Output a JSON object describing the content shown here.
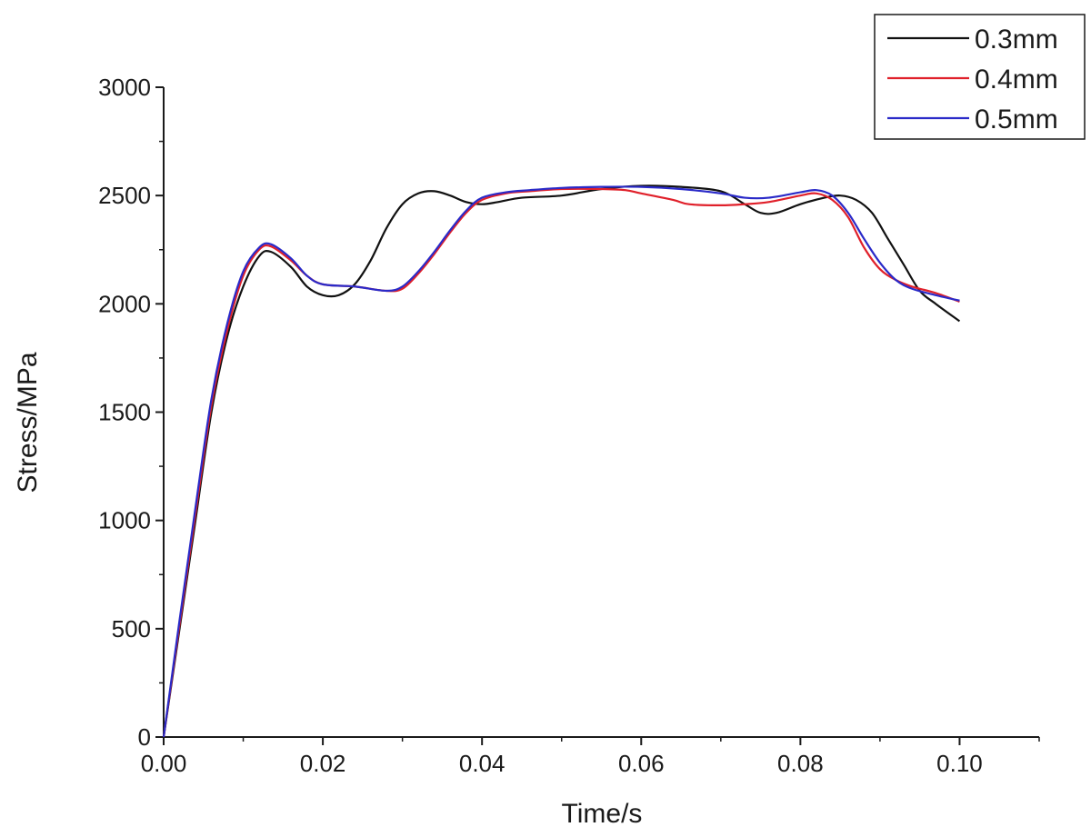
{
  "chart_data": {
    "type": "line",
    "title": "",
    "xlabel": "Time/s",
    "ylabel": "Stress/MPa",
    "xlim": [
      0,
      0.11
    ],
    "ylim": [
      0,
      3000
    ],
    "x_ticks": [
      "0.00",
      "0.02",
      "0.04",
      "0.06",
      "0.08",
      "0.10"
    ],
    "y_ticks": [
      "0",
      "500",
      "1000",
      "1500",
      "2000",
      "2500",
      "3000"
    ],
    "grid": false,
    "legend_position": "top-right",
    "series": [
      {
        "name": "0.3mm",
        "color": "#111111",
        "points": [
          [
            0,
            0
          ],
          [
            0.002,
            500
          ],
          [
            0.004,
            1000
          ],
          [
            0.006,
            1500
          ],
          [
            0.008,
            1850
          ],
          [
            0.01,
            2080
          ],
          [
            0.012,
            2220
          ],
          [
            0.0135,
            2240
          ],
          [
            0.016,
            2170
          ],
          [
            0.018,
            2080
          ],
          [
            0.02,
            2040
          ],
          [
            0.022,
            2040
          ],
          [
            0.024,
            2090
          ],
          [
            0.026,
            2200
          ],
          [
            0.028,
            2350
          ],
          [
            0.03,
            2460
          ],
          [
            0.032,
            2510
          ],
          [
            0.034,
            2520
          ],
          [
            0.036,
            2500
          ],
          [
            0.038,
            2470
          ],
          [
            0.04,
            2460
          ],
          [
            0.042,
            2470
          ],
          [
            0.045,
            2490
          ],
          [
            0.05,
            2500
          ],
          [
            0.055,
            2530
          ],
          [
            0.06,
            2545
          ],
          [
            0.065,
            2540
          ],
          [
            0.07,
            2520
          ],
          [
            0.073,
            2460
          ],
          [
            0.075,
            2420
          ],
          [
            0.077,
            2420
          ],
          [
            0.08,
            2460
          ],
          [
            0.083,
            2490
          ],
          [
            0.085,
            2500
          ],
          [
            0.087,
            2480
          ],
          [
            0.089,
            2420
          ],
          [
            0.091,
            2300
          ],
          [
            0.093,
            2180
          ],
          [
            0.095,
            2060
          ],
          [
            0.097,
            2000
          ],
          [
            0.1,
            1920
          ]
        ]
      },
      {
        "name": "0.4mm",
        "color": "#e0202a",
        "points": [
          [
            0,
            0
          ],
          [
            0.002,
            520
          ],
          [
            0.004,
            1030
          ],
          [
            0.006,
            1530
          ],
          [
            0.008,
            1880
          ],
          [
            0.01,
            2130
          ],
          [
            0.012,
            2250
          ],
          [
            0.0135,
            2265
          ],
          [
            0.016,
            2200
          ],
          [
            0.018,
            2130
          ],
          [
            0.02,
            2090
          ],
          [
            0.024,
            2080
          ],
          [
            0.028,
            2060
          ],
          [
            0.03,
            2070
          ],
          [
            0.032,
            2140
          ],
          [
            0.034,
            2230
          ],
          [
            0.036,
            2330
          ],
          [
            0.038,
            2420
          ],
          [
            0.04,
            2480
          ],
          [
            0.043,
            2510
          ],
          [
            0.046,
            2520
          ],
          [
            0.05,
            2530
          ],
          [
            0.055,
            2530
          ],
          [
            0.058,
            2525
          ],
          [
            0.06,
            2510
          ],
          [
            0.064,
            2480
          ],
          [
            0.066,
            2460
          ],
          [
            0.07,
            2455
          ],
          [
            0.073,
            2460
          ],
          [
            0.076,
            2470
          ],
          [
            0.08,
            2500
          ],
          [
            0.082,
            2510
          ],
          [
            0.084,
            2480
          ],
          [
            0.086,
            2400
          ],
          [
            0.088,
            2260
          ],
          [
            0.09,
            2160
          ],
          [
            0.092,
            2110
          ],
          [
            0.094,
            2080
          ],
          [
            0.097,
            2050
          ],
          [
            0.1,
            2010
          ]
        ]
      },
      {
        "name": "0.5mm",
        "color": "#2a2ac8",
        "points": [
          [
            0,
            0
          ],
          [
            0.002,
            540
          ],
          [
            0.004,
            1060
          ],
          [
            0.006,
            1560
          ],
          [
            0.008,
            1910
          ],
          [
            0.01,
            2150
          ],
          [
            0.012,
            2260
          ],
          [
            0.0135,
            2275
          ],
          [
            0.016,
            2210
          ],
          [
            0.018,
            2130
          ],
          [
            0.02,
            2090
          ],
          [
            0.024,
            2080
          ],
          [
            0.028,
            2060
          ],
          [
            0.03,
            2080
          ],
          [
            0.032,
            2150
          ],
          [
            0.034,
            2240
          ],
          [
            0.036,
            2340
          ],
          [
            0.038,
            2430
          ],
          [
            0.04,
            2490
          ],
          [
            0.043,
            2515
          ],
          [
            0.046,
            2525
          ],
          [
            0.05,
            2535
          ],
          [
            0.055,
            2540
          ],
          [
            0.06,
            2540
          ],
          [
            0.065,
            2530
          ],
          [
            0.07,
            2510
          ],
          [
            0.073,
            2490
          ],
          [
            0.076,
            2490
          ],
          [
            0.08,
            2515
          ],
          [
            0.082,
            2525
          ],
          [
            0.084,
            2500
          ],
          [
            0.086,
            2420
          ],
          [
            0.088,
            2300
          ],
          [
            0.09,
            2190
          ],
          [
            0.092,
            2110
          ],
          [
            0.094,
            2070
          ],
          [
            0.097,
            2040
          ],
          [
            0.1,
            2015
          ]
        ]
      }
    ]
  }
}
